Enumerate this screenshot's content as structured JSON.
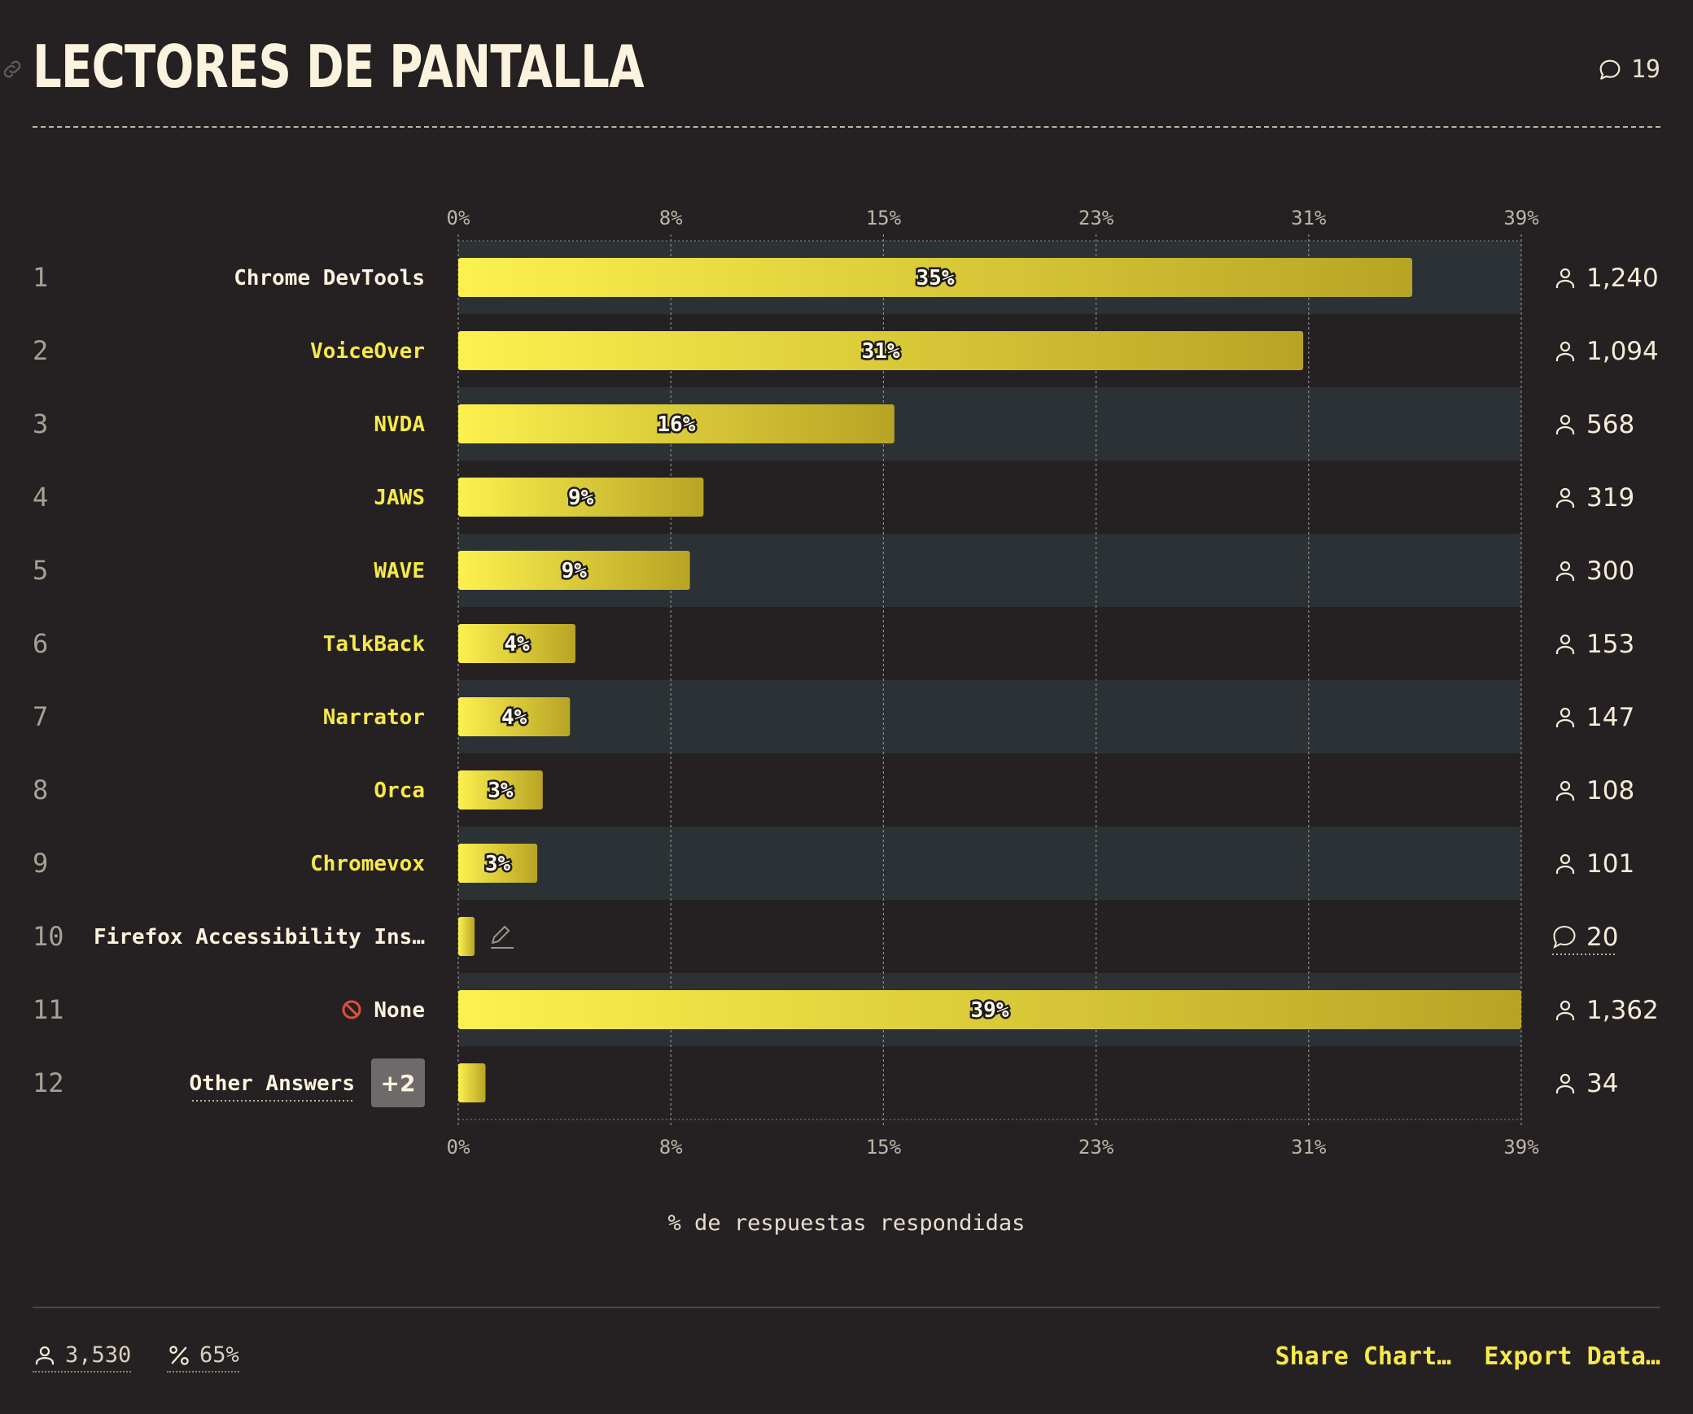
{
  "title": "LECTORES DE PANTALLA",
  "comment_count": "19",
  "chart_data": {
    "type": "bar",
    "orientation": "horizontal",
    "x_ticks": [
      "0%",
      "8%",
      "15%",
      "23%",
      "31%",
      "39%"
    ],
    "xlim": [
      0,
      39
    ],
    "xlabel": "% de respuestas respondidas",
    "grid": true,
    "rows": [
      {
        "rank": "1",
        "label": "Chrome DevTools",
        "value": 35,
        "value_label": "35%",
        "count": "1,240",
        "label_color": "#fbf3dd",
        "count_type": "people"
      },
      {
        "rank": "2",
        "label": "VoiceOver",
        "value": 31,
        "value_label": "31%",
        "count": "1,094",
        "label_color": "#f6e94a",
        "count_type": "people"
      },
      {
        "rank": "3",
        "label": "NVDA",
        "value": 16,
        "value_label": "16%",
        "count": "568",
        "label_color": "#f6e94a",
        "count_type": "people"
      },
      {
        "rank": "4",
        "label": "JAWS",
        "value": 9,
        "value_label": "9%",
        "count": "319",
        "label_color": "#f6e94a",
        "count_type": "people"
      },
      {
        "rank": "5",
        "label": "WAVE",
        "value": 8.5,
        "value_label": "9%",
        "count": "300",
        "label_color": "#f6e94a",
        "count_type": "people"
      },
      {
        "rank": "6",
        "label": "TalkBack",
        "value": 4.3,
        "value_label": "4%",
        "count": "153",
        "label_color": "#f6e94a",
        "count_type": "people"
      },
      {
        "rank": "7",
        "label": "Narrator",
        "value": 4.1,
        "value_label": "4%",
        "count": "147",
        "label_color": "#f6e94a",
        "count_type": "people"
      },
      {
        "rank": "8",
        "label": "Orca",
        "value": 3.1,
        "value_label": "3%",
        "count": "108",
        "label_color": "#f6e94a",
        "count_type": "people"
      },
      {
        "rank": "9",
        "label": "Chromevox",
        "value": 2.9,
        "value_label": "3%",
        "count": "101",
        "label_color": "#f6e94a",
        "count_type": "people"
      },
      {
        "rank": "10",
        "label": "Firefox Accessibility Ins…",
        "value": 0.6,
        "value_label": "",
        "count": "20",
        "label_color": "#fbf3dd",
        "count_type": "comments"
      },
      {
        "rank": "11",
        "label": "None",
        "value": 39,
        "value_label": "39%",
        "count": "1,362",
        "label_color": "#fbf3dd",
        "count_type": "people",
        "none_icon": true
      },
      {
        "rank": "12",
        "label": "Other Answers",
        "value": 1,
        "value_label": "",
        "count": "34",
        "label_color": "#fbf3dd",
        "count_type": "people",
        "badge": "+2"
      }
    ],
    "colors": {
      "bar_start": "#fcf14f",
      "bar_end": "#b8a424",
      "band": "#2b3134",
      "grid": "#8d8b86"
    }
  },
  "footer": {
    "total_respondents": "3,530",
    "percent_answered": "65%",
    "share_label": "Share Chart…",
    "export_label": "Export Data…"
  }
}
